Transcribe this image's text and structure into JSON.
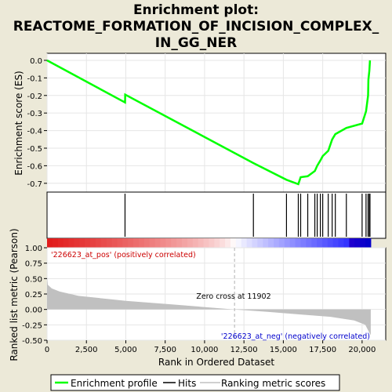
{
  "title_lines": [
    "Enrichment plot:",
    "REACTOME_FORMATION_OF_INCISION_COMPLEX_",
    "IN_GG_NER"
  ],
  "colors": {
    "background": "#ece9d8",
    "panel": "#ffffff",
    "enrichment_line": "#00ff00",
    "hit": "#000000",
    "metric_fill": "#c0c0c0",
    "pos_label": "#cc0000",
    "neg_label": "#0000cc",
    "zero_line": "#b0b0b0"
  },
  "chart_data": [
    {
      "type": "line",
      "name": "enrichment_profile",
      "ylabel": "Enrichment score (ES)",
      "ylim": [
        -0.75,
        0.04
      ],
      "xlim": [
        0,
        21500
      ],
      "yticks": [
        0.0,
        -0.1,
        -0.2,
        -0.3,
        -0.4,
        -0.5,
        -0.6,
        -0.7
      ],
      "ytick_labels": [
        "0.0",
        "-0.1",
        "-0.2",
        "-0.3",
        "-0.4",
        "-0.5",
        "-0.6",
        "-0.7"
      ],
      "grid": true,
      "x": [
        0,
        4950,
        4960,
        13100,
        15200,
        15950,
        16100,
        16550,
        17000,
        17150,
        17350,
        17500,
        17850,
        18100,
        18300,
        19000,
        20000,
        20250,
        20380,
        20400,
        20460,
        20500
      ],
      "y": [
        0.0,
        -0.24,
        -0.195,
        -0.585,
        -0.68,
        -0.705,
        -0.665,
        -0.66,
        -0.63,
        -0.6,
        -0.57,
        -0.545,
        -0.515,
        -0.45,
        -0.42,
        -0.385,
        -0.36,
        -0.29,
        -0.2,
        -0.11,
        -0.06,
        0.0
      ]
    },
    {
      "type": "scatter",
      "name": "hits",
      "hits_x": [
        4950,
        13100,
        15200,
        15950,
        16100,
        16550,
        17000,
        17150,
        17350,
        17500,
        17850,
        18100,
        18300,
        19000,
        20000,
        20250,
        20380,
        20460,
        20500
      ]
    },
    {
      "type": "area",
      "name": "ranking_metric",
      "xlabel": "Rank in Ordered Dataset",
      "ylabel": "Ranked list metric (Pearson)",
      "xlim": [
        0,
        21500
      ],
      "ylim": [
        -0.5,
        1.0
      ],
      "yticks": [
        1.0,
        0.75,
        0.5,
        0.25,
        0.0,
        -0.25,
        -0.5
      ],
      "ytick_labels": [
        "1.00",
        "0.75",
        "0.50",
        "0.25",
        "0.00",
        "-0.25",
        "-0.50"
      ],
      "xticks": [
        0,
        2500,
        5000,
        7500,
        10000,
        12500,
        15000,
        17500,
        20000
      ],
      "xtick_labels": [
        "0",
        "2,500",
        "5,000",
        "7,500",
        "10,000",
        "12,500",
        "15,000",
        "17,500",
        "20,000"
      ],
      "x": [
        0,
        50,
        300,
        800,
        2000,
        5000,
        8000,
        11902,
        14000,
        16000,
        18000,
        19500,
        20200,
        20550
      ],
      "y": [
        0.52,
        0.4,
        0.34,
        0.29,
        0.22,
        0.14,
        0.08,
        0.0,
        -0.04,
        -0.08,
        -0.12,
        -0.18,
        -0.25,
        -0.42
      ],
      "zero_cross": 11902,
      "zero_cross_label": "Zero cross at 11902",
      "pos_label": "'226623_at_pos' (positively correlated)",
      "neg_label": "'226623_at_neg' (negatively correlated)"
    }
  ],
  "legend": {
    "items": [
      {
        "label": "Enrichment profile",
        "color": "#00ff00"
      },
      {
        "label": "Hits",
        "color": "#000000"
      },
      {
        "label": "Ranking metric scores",
        "color": "#c0c0c0"
      }
    ]
  }
}
